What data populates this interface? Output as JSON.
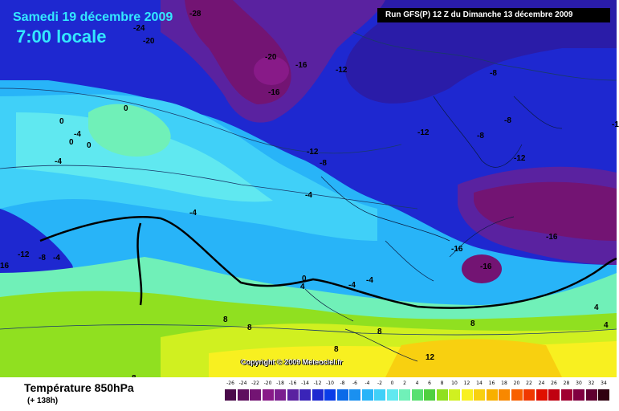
{
  "header": {
    "date": "Samedi 19 décembre 2009",
    "time": "7:00 locale",
    "run": "Run GFS(P) 12 Z du Dimanche 13 décembre 2009"
  },
  "copyright": "Copyright © 2009 Meteociel.fr",
  "footer": {
    "title": "Température 850hPa",
    "forecast_hour": "(+ 138h)"
  },
  "legend": {
    "ticks": [
      "-26",
      "-24",
      "-22",
      "-20",
      "-18",
      "-16",
      "-14",
      "-12",
      "-10",
      "-8",
      "-6",
      "-4",
      "-2",
      "0",
      "2",
      "4",
      "6",
      "8",
      "10",
      "12",
      "14",
      "16",
      "18",
      "20",
      "22",
      "24",
      "26",
      "28",
      "30",
      "32",
      "34"
    ],
    "colors": [
      "#4a0a4a",
      "#5e0f5e",
      "#731473",
      "#881a88",
      "#7a1f8f",
      "#5a22a0",
      "#3a24b8",
      "#1e28d0",
      "#0a3ce8",
      "#0a6ae8",
      "#1a90f0",
      "#28b4f8",
      "#40d0f8",
      "#60e8f0",
      "#70f0b8",
      "#58e070",
      "#50d040",
      "#90e020",
      "#d0f020",
      "#f8f020",
      "#f8d010",
      "#f8b000",
      "#f88800",
      "#f86000",
      "#f03800",
      "#e01000",
      "#c00010",
      "#a00030",
      "#800040",
      "#600030",
      "#300010"
    ]
  },
  "contour_labels": [
    {
      "text": "-28"
    },
    {
      "text": "-24"
    },
    {
      "text": "-20"
    },
    {
      "text": "-20"
    },
    {
      "text": "-16"
    },
    {
      "text": "-12"
    },
    {
      "text": "-8"
    },
    {
      "text": "-16"
    },
    {
      "text": "-8"
    },
    {
      "text": "-12"
    },
    {
      "text": "-8"
    },
    {
      "text": "-1"
    },
    {
      "text": "-12"
    },
    {
      "text": "-12"
    },
    {
      "text": "-8"
    },
    {
      "text": "-4"
    },
    {
      "text": "-4"
    },
    {
      "text": "-4"
    },
    {
      "text": "-16"
    },
    {
      "text": "-16"
    },
    {
      "text": "-16"
    },
    {
      "text": "0"
    },
    {
      "text": "0"
    },
    {
      "text": "-4"
    },
    {
      "text": "0"
    },
    {
      "text": "0"
    },
    {
      "text": "-12"
    },
    {
      "text": "-8"
    },
    {
      "text": "-4"
    },
    {
      "text": "16"
    },
    {
      "text": "0"
    },
    {
      "text": "4"
    },
    {
      "text": "-4"
    },
    {
      "text": "-4"
    },
    {
      "text": "8"
    },
    {
      "text": "8"
    },
    {
      "text": "8"
    },
    {
      "text": "8"
    },
    {
      "text": "8"
    },
    {
      "text": "12"
    },
    {
      "text": "4"
    },
    {
      "text": "4"
    },
    {
      "text": "8"
    }
  ]
}
